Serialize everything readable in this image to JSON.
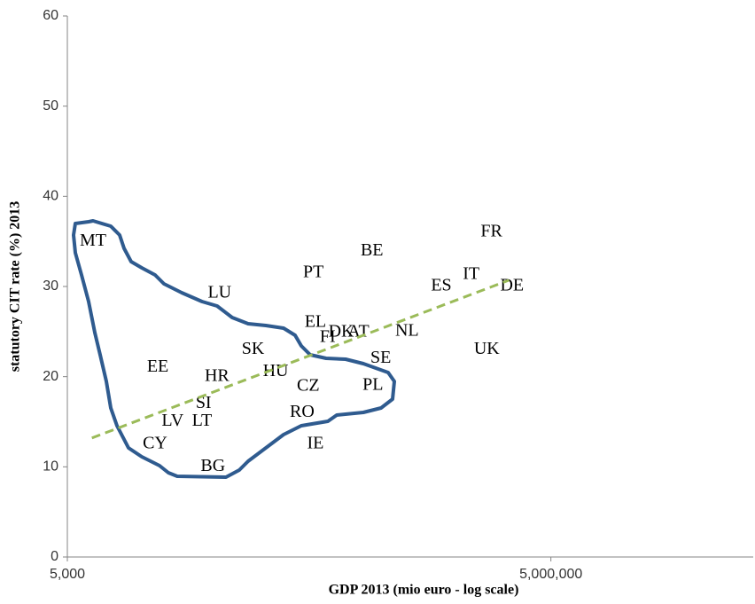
{
  "chart_data": {
    "type": "scatter",
    "x_label": "GDP 2013 (mio euro - log scale)",
    "y_label": "statutory CIT rate (%) 2013",
    "labels": [
      "MT",
      "LU",
      "PT",
      "BE",
      "FR",
      "IT",
      "ES",
      "DE",
      "EL",
      "DK",
      "AT",
      "FI",
      "NL",
      "UK",
      "SE",
      "SK",
      "HU",
      "EE",
      "HR",
      "CZ",
      "PL",
      "SI",
      "LV",
      "LT",
      "RO",
      "CY",
      "IE",
      "BG"
    ],
    "x": [
      7220,
      44000,
      168000,
      388000,
      2140000,
      1600000,
      1045000,
      2870000,
      173000,
      250000,
      320000,
      206000,
      640000,
      2000000,
      440000,
      71000,
      98000,
      18200,
      42400,
      156000,
      393000,
      35000,
      22500,
      34200,
      143000,
      17500,
      173000,
      40000
    ],
    "values": [
      35,
      29.2,
      31.5,
      33.9,
      36,
      31.3,
      30,
      30,
      26,
      24.9,
      24.9,
      24.3,
      25,
      23,
      22,
      23,
      20.5,
      21,
      20,
      18.9,
      19,
      17,
      15,
      15,
      16,
      12.5,
      12.5,
      10
    ],
    "color": "#000000",
    "xscale": "log",
    "xlim": [
      5000,
      90000000
    ],
    "xticks": [
      {
        "value": 5000,
        "label": "5,000"
      },
      {
        "value": 5000000,
        "label": "5,000,000"
      }
    ],
    "ylim": [
      0,
      60
    ],
    "yticks": [
      0,
      10,
      20,
      30,
      40,
      50,
      60
    ],
    "grid": false,
    "trendline": {
      "x": [
        7100,
        2750000
      ],
      "y": [
        13.2,
        30.7
      ],
      "color": "#9bbb59"
    }
  }
}
